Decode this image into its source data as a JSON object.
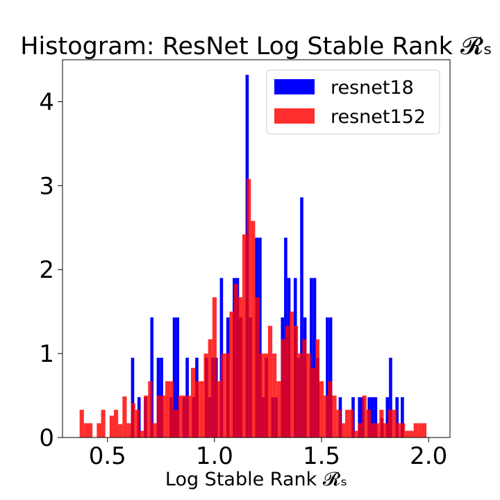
{
  "chart_data": {
    "type": "bar",
    "title": "Histogram: ResNet Log Stable Rank 𝓡ₛ",
    "xlabel": "Log Stable Rank 𝓡ₛ",
    "ylabel": "",
    "xlim": [
      0.29,
      2.1
    ],
    "ylim": [
      0,
      4.5
    ],
    "xticks": [
      0.5,
      1.0,
      1.5,
      2.0
    ],
    "xtick_labels": [
      "0.5",
      "1.0",
      "1.5",
      "2.0"
    ],
    "yticks": [
      0,
      1,
      2,
      3,
      4
    ],
    "ytick_labels": [
      "0",
      "1",
      "2",
      "3",
      "4"
    ],
    "grid": false,
    "legend_position": "top-right",
    "series": [
      {
        "name": "resnet18",
        "color": "#0000ff",
        "alpha": 1.0,
        "bins": [
          [
            0.61,
            0.625,
            0.95
          ],
          [
            0.64,
            0.655,
            0.48
          ],
          [
            0.67,
            0.685,
            0.48
          ],
          [
            0.7,
            0.715,
            1.43
          ],
          [
            0.73,
            0.745,
            0.95
          ],
          [
            0.745,
            0.76,
            0.95
          ],
          [
            0.79,
            0.805,
            0.48
          ],
          [
            0.805,
            0.82,
            1.43
          ],
          [
            0.82,
            0.835,
            1.43
          ],
          [
            0.85,
            0.865,
            0.48
          ],
          [
            0.865,
            0.88,
            0.95
          ],
          [
            0.895,
            0.91,
            0.48
          ],
          [
            0.91,
            0.925,
            0.95
          ],
          [
            0.955,
            0.97,
            0.95
          ],
          [
            0.97,
            0.985,
            0.48
          ],
          [
            0.985,
            1.0,
            0.95
          ],
          [
            1.0,
            1.015,
            0.95
          ],
          [
            1.025,
            1.04,
            1.9
          ],
          [
            1.055,
            1.07,
            1.43
          ],
          [
            1.085,
            1.1,
            1.9
          ],
          [
            1.1,
            1.115,
            1.9
          ],
          [
            1.115,
            1.13,
            1.43
          ],
          [
            1.145,
            1.16,
            4.32
          ],
          [
            1.16,
            1.175,
            1.43
          ],
          [
            1.19,
            1.205,
            2.38
          ],
          [
            1.205,
            1.22,
            2.38
          ],
          [
            1.22,
            1.235,
            0.48
          ],
          [
            1.235,
            1.25,
            0.95
          ],
          [
            1.265,
            1.28,
            0.48
          ],
          [
            1.28,
            1.295,
            0.48
          ],
          [
            1.31,
            1.325,
            1.43
          ],
          [
            1.325,
            1.34,
            2.38
          ],
          [
            1.34,
            1.355,
            1.9
          ],
          [
            1.37,
            1.385,
            1.9
          ],
          [
            1.385,
            1.4,
            0.95
          ],
          [
            1.4,
            1.415,
            2.86
          ],
          [
            1.415,
            1.43,
            1.43
          ],
          [
            1.445,
            1.46,
            1.9
          ],
          [
            1.46,
            1.475,
            1.9
          ],
          [
            1.475,
            1.49,
            0.95
          ],
          [
            1.52,
            1.535,
            1.43
          ],
          [
            1.535,
            1.55,
            1.43
          ],
          [
            1.58,
            1.595,
            0.48
          ],
          [
            1.64,
            1.655,
            0.48
          ],
          [
            1.67,
            1.685,
            0.48
          ],
          [
            1.685,
            1.7,
            0.48
          ],
          [
            1.715,
            1.73,
            0.48
          ],
          [
            1.73,
            1.745,
            0.48
          ],
          [
            1.745,
            1.76,
            0.48
          ],
          [
            1.775,
            1.79,
            0.23
          ],
          [
            1.8,
            1.815,
            0.48
          ],
          [
            1.815,
            1.83,
            0.95
          ],
          [
            1.845,
            1.86,
            0.48
          ],
          [
            1.87,
            1.885,
            0.48
          ]
        ]
      },
      {
        "name": "resnet152",
        "color": "#ff0000",
        "alpha": 0.82,
        "bins": [
          [
            0.37,
            0.39,
            0.33
          ],
          [
            0.39,
            0.41,
            0.17
          ],
          [
            0.41,
            0.43,
            0.17
          ],
          [
            0.45,
            0.47,
            0.17
          ],
          [
            0.47,
            0.49,
            0.33
          ],
          [
            0.51,
            0.53,
            0.26
          ],
          [
            0.53,
            0.55,
            0.33
          ],
          [
            0.55,
            0.57,
            0.16
          ],
          [
            0.57,
            0.59,
            0.49
          ],
          [
            0.59,
            0.61,
            0.17
          ],
          [
            0.61,
            0.63,
            0.41
          ],
          [
            0.63,
            0.65,
            0.33
          ],
          [
            0.65,
            0.67,
            0.08
          ],
          [
            0.67,
            0.69,
            0.5
          ],
          [
            0.69,
            0.71,
            0.67
          ],
          [
            0.71,
            0.73,
            0.17
          ],
          [
            0.73,
            0.75,
            0.5
          ],
          [
            0.75,
            0.77,
            0.5
          ],
          [
            0.77,
            0.79,
            0.67
          ],
          [
            0.79,
            0.81,
            0.67
          ],
          [
            0.81,
            0.83,
            0.33
          ],
          [
            0.83,
            0.85,
            0.5
          ],
          [
            0.85,
            0.87,
            0.5
          ],
          [
            0.87,
            0.89,
            0.5
          ],
          [
            0.89,
            0.91,
            0.83
          ],
          [
            0.91,
            0.93,
            0.67
          ],
          [
            0.93,
            0.95,
            0.67
          ],
          [
            0.95,
            0.97,
            1.0
          ],
          [
            0.97,
            0.99,
            1.17
          ],
          [
            0.99,
            1.01,
            1.67
          ],
          [
            1.01,
            1.03,
            0.67
          ],
          [
            1.03,
            1.05,
            1.0
          ],
          [
            1.05,
            1.07,
            1.0
          ],
          [
            1.07,
            1.09,
            1.5
          ],
          [
            1.09,
            1.11,
            1.83
          ],
          [
            1.11,
            1.13,
            1.67
          ],
          [
            1.13,
            1.15,
            2.42
          ],
          [
            1.15,
            1.17,
            3.08
          ],
          [
            1.17,
            1.19,
            2.58
          ],
          [
            1.19,
            1.21,
            1.67
          ],
          [
            1.21,
            1.23,
            1.0
          ],
          [
            1.23,
            1.25,
            1.0
          ],
          [
            1.25,
            1.27,
            1.33
          ],
          [
            1.27,
            1.29,
            1.0
          ],
          [
            1.29,
            1.31,
            0.67
          ],
          [
            1.31,
            1.33,
            1.17
          ],
          [
            1.33,
            1.35,
            1.33
          ],
          [
            1.35,
            1.37,
            1.5
          ],
          [
            1.37,
            1.39,
            1.33
          ],
          [
            1.39,
            1.41,
            1.0
          ],
          [
            1.41,
            1.43,
            1.17
          ],
          [
            1.43,
            1.45,
            1.0
          ],
          [
            1.45,
            1.47,
            0.83
          ],
          [
            1.47,
            1.49,
            1.17
          ],
          [
            1.49,
            1.51,
            0.67
          ],
          [
            1.51,
            1.53,
            0.5
          ],
          [
            1.53,
            1.55,
            0.67
          ],
          [
            1.55,
            1.57,
            0.5
          ],
          [
            1.57,
            1.59,
            0.33
          ],
          [
            1.59,
            1.61,
            0.17
          ],
          [
            1.61,
            1.63,
            0.33
          ],
          [
            1.63,
            1.65,
            0.33
          ],
          [
            1.65,
            1.67,
            0.08
          ],
          [
            1.67,
            1.69,
            0.17
          ],
          [
            1.69,
            1.71,
            0.5
          ],
          [
            1.71,
            1.73,
            0.33
          ],
          [
            1.73,
            1.75,
            0.17
          ],
          [
            1.75,
            1.77,
            0.17
          ],
          [
            1.77,
            1.79,
            0.33
          ],
          [
            1.79,
            1.81,
            0.17
          ],
          [
            1.81,
            1.83,
            0.33
          ],
          [
            1.83,
            1.85,
            0.33
          ],
          [
            1.85,
            1.87,
            0.17
          ],
          [
            1.87,
            1.89,
            0.17
          ],
          [
            1.89,
            1.91,
            0.08
          ],
          [
            1.91,
            1.93,
            0.08
          ],
          [
            1.93,
            1.95,
            0.17
          ],
          [
            1.95,
            1.97,
            0.17
          ],
          [
            1.97,
            1.99,
            0.17
          ]
        ]
      }
    ]
  }
}
